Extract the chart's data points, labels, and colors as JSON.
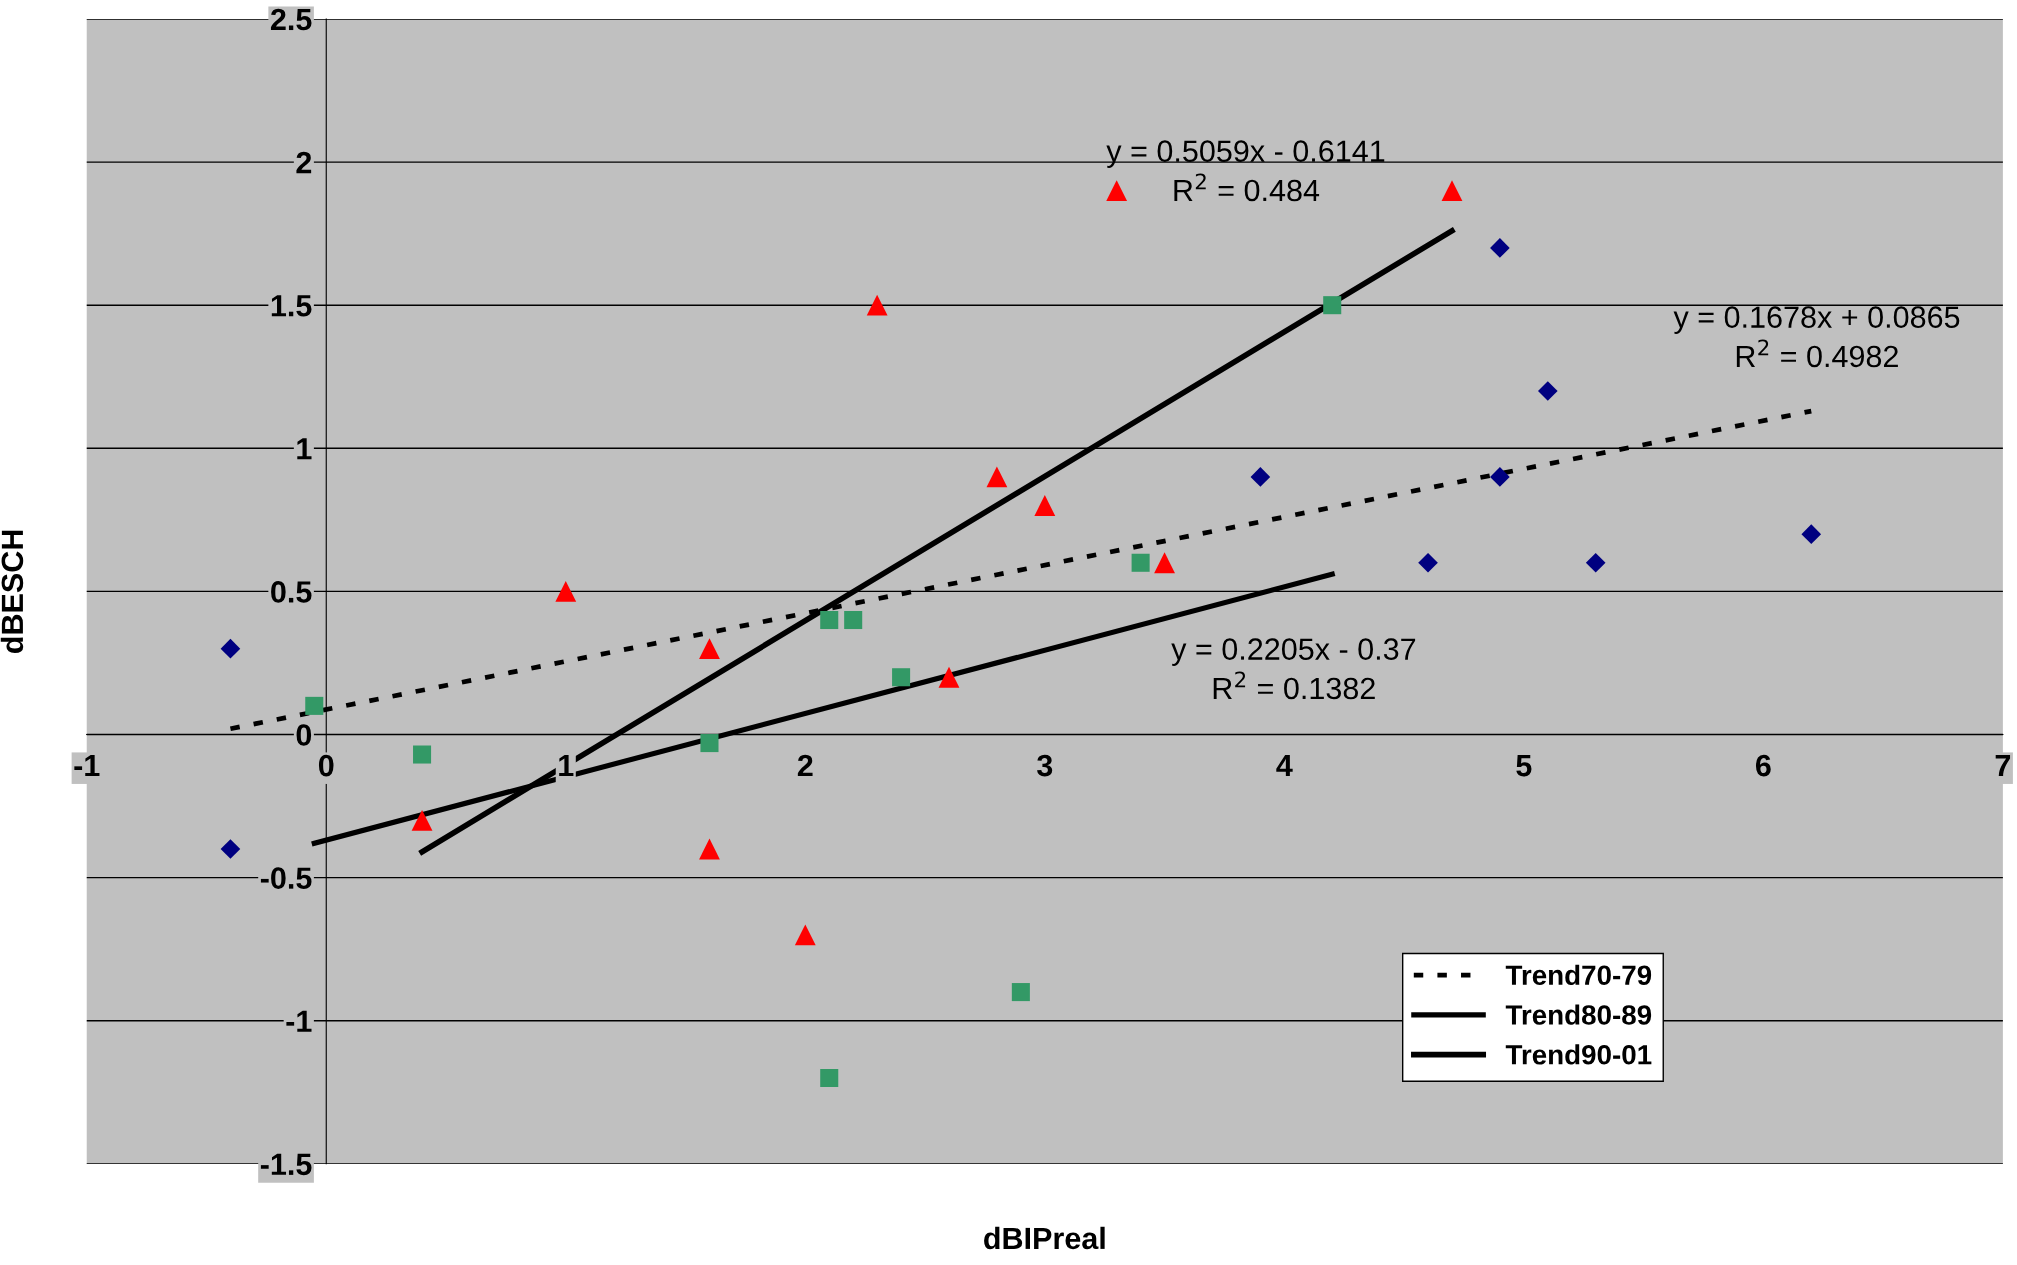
{
  "chart_data": {
    "type": "scatter",
    "xlabel": "dBIPreal",
    "ylabel": "dBESCH",
    "xlim": [
      -1,
      7
    ],
    "ylim": [
      -1.5,
      2.5
    ],
    "xticks": [
      -1,
      0,
      1,
      2,
      3,
      4,
      5,
      6,
      7
    ],
    "yticks": [
      -1.5,
      -1,
      -0.5,
      0,
      0.5,
      1,
      1.5,
      2,
      2.5
    ],
    "grid": "y",
    "legend": "bottom right",
    "series": [
      {
        "marker": "diamond",
        "color": "#000080",
        "x": [
          -0.4,
          -0.4,
          3.9,
          4.6,
          4.9,
          4.9,
          5.1,
          5.3,
          6.2
        ],
        "values": [
          0.3,
          -0.4,
          0.9,
          0.6,
          1.7,
          0.9,
          1.2,
          0.6,
          0.7
        ]
      },
      {
        "marker": "square",
        "color": "#339966",
        "x": [
          -0.05,
          0.4,
          1.6,
          2.1,
          2.2,
          2.4,
          2.9,
          2.1,
          3.4,
          4.2
        ],
        "values": [
          0.1,
          -0.07,
          -0.03,
          0.4,
          0.4,
          0.2,
          -0.9,
          -1.2,
          0.6,
          1.5
        ]
      },
      {
        "marker": "triangle",
        "color": "#ff0000",
        "x": [
          0.4,
          1.0,
          1.6,
          1.6,
          2.0,
          2.3,
          2.6,
          2.8,
          3.0,
          3.3,
          3.5,
          4.7
        ],
        "values": [
          -0.3,
          0.5,
          0.3,
          -0.4,
          -0.7,
          1.5,
          0.2,
          0.9,
          0.8,
          1.9,
          0.6,
          1.9
        ]
      },
      {
        "type": "line",
        "name": "Trend70-79",
        "color": "#000000",
        "line_style": "dotted",
        "marker": "none",
        "x": [
          -0.4,
          6.2
        ],
        "values": [
          0.02,
          1.13
        ]
      },
      {
        "type": "line",
        "name": "Trend80-89",
        "color": "#000000",
        "line_style": "solid",
        "marker": "none",
        "x": [
          -0.05,
          4.2
        ],
        "values": [
          -0.38,
          0.56
        ]
      },
      {
        "type": "line",
        "name": "Trend90-01",
        "color": "#000000",
        "line_style": "solid",
        "marker": "none",
        "x": [
          0.4,
          4.7
        ],
        "values": [
          -0.41,
          1.76
        ]
      }
    ],
    "annotations": [
      "y = 0.5059x - 0.6141\nR$^{2}$ = 0.484",
      "y = 0.1678x + 0.0865\nR$^{2}$ = 0.4982",
      "y = 0.2205x - 0.37\nR$^{2}$ = 0.1382"
    ]
  }
}
